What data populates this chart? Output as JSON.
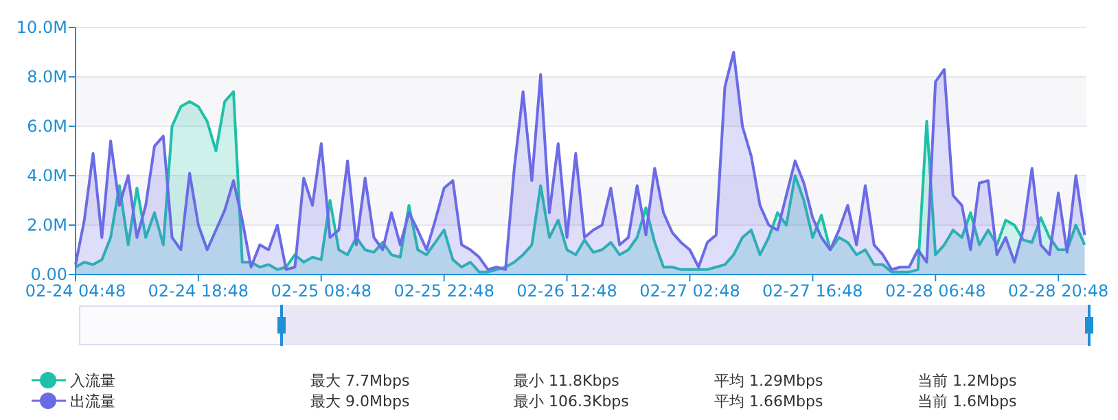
{
  "chart_data": {
    "type": "area",
    "x": [
      "--02-24T04:48",
      "--02-24T05:48",
      "--02-24T06:48",
      "--02-24T07:48",
      "--02-24T08:48",
      "--02-24T09:48",
      "--02-24T10:48",
      "--02-24T11:48",
      "--02-24T12:48",
      "--02-24T13:48",
      "--02-24T14:48",
      "--02-24T15:48",
      "--02-24T16:48",
      "--02-24T17:48",
      "--02-24T18:48",
      "--02-24T19:48",
      "--02-24T20:48",
      "--02-24T21:48",
      "--02-24T22:48",
      "--02-24T23:48",
      "--02-25T00:48",
      "--02-25T01:48",
      "--02-25T02:48",
      "--02-25T03:48",
      "--02-25T04:48",
      "--02-25T05:48",
      "--02-25T06:48",
      "--02-25T07:48",
      "--02-25T08:48",
      "--02-25T09:48",
      "--02-25T10:48",
      "--02-25T11:48",
      "--02-25T12:48",
      "--02-25T13:48",
      "--02-25T14:48",
      "--02-25T15:48",
      "--02-25T16:48",
      "--02-25T17:48",
      "--02-25T18:48",
      "--02-25T19:48",
      "--02-25T20:48",
      "--02-25T21:48",
      "--02-25T22:48",
      "--02-25T23:48",
      "--02-26T00:48",
      "--02-26T01:48",
      "--02-26T02:48",
      "--02-26T03:48",
      "--02-26T04:48",
      "--02-26T05:48",
      "--02-26T06:48",
      "--02-26T07:48",
      "--02-26T08:48",
      "--02-26T09:48",
      "--02-26T10:48",
      "--02-26T11:48",
      "--02-26T12:48",
      "--02-26T13:48",
      "--02-26T14:48",
      "--02-26T15:48",
      "--02-26T16:48",
      "--02-26T17:48",
      "--02-26T18:48",
      "--02-26T19:48",
      "--02-26T20:48",
      "--02-26T21:48",
      "--02-26T22:48",
      "--02-26T23:48",
      "--02-27T00:48",
      "--02-27T01:48",
      "--02-27T02:48",
      "--02-27T03:48",
      "--02-27T04:48",
      "--02-27T05:48",
      "--02-27T06:48",
      "--02-27T07:48",
      "--02-27T08:48",
      "--02-27T09:48",
      "--02-27T10:48",
      "--02-27T11:48",
      "--02-27T12:48",
      "--02-27T13:48",
      "--02-27T14:48",
      "--02-27T15:48",
      "--02-27T16:48",
      "--02-27T17:48",
      "--02-27T18:48",
      "--02-27T19:48",
      "--02-27T20:48",
      "--02-27T21:48",
      "--02-27T22:48",
      "--02-27T23:48",
      "--02-28T00:48",
      "--02-28T01:48",
      "--02-28T02:48",
      "--02-28T03:48",
      "--02-28T04:48",
      "--02-28T05:48",
      "--02-28T06:48",
      "--02-28T07:48",
      "--02-28T08:48",
      "--02-28T09:48",
      "--02-28T10:48",
      "--02-28T11:48",
      "--02-28T12:48",
      "--02-28T13:48",
      "--02-28T14:48",
      "--02-28T15:48",
      "--02-28T16:48",
      "--02-28T17:48",
      "--02-28T18:48",
      "--02-28T19:48",
      "--02-28T20:48",
      "--02-28T21:48",
      "--02-28T22:48",
      "--02-28T23:48"
    ],
    "series": [
      {
        "name": "入流量",
        "color": "#1fc0a8",
        "values": [
          0.3,
          0.5,
          0.4,
          0.6,
          1.5,
          3.6,
          1.2,
          3.5,
          1.5,
          2.5,
          1.2,
          6.0,
          6.8,
          7.0,
          6.8,
          6.2,
          5.0,
          7.0,
          7.4,
          0.5,
          0.5,
          0.3,
          0.4,
          0.2,
          0.3,
          0.8,
          0.5,
          0.7,
          0.6,
          3.0,
          1.0,
          0.8,
          1.5,
          1.0,
          0.9,
          1.3,
          0.8,
          0.7,
          2.8,
          1.0,
          0.8,
          1.3,
          1.8,
          0.6,
          0.3,
          0.5,
          0.1,
          0.1,
          0.2,
          0.3,
          0.5,
          0.8,
          1.2,
          3.6,
          1.5,
          2.2,
          1.0,
          0.8,
          1.4,
          0.9,
          1.0,
          1.3,
          0.8,
          1.0,
          1.5,
          2.7,
          1.3,
          0.3,
          0.3,
          0.2,
          0.2,
          0.2,
          0.2,
          0.3,
          0.4,
          0.8,
          1.5,
          1.8,
          0.8,
          1.5,
          2.5,
          2.0,
          4.0,
          3.0,
          1.5,
          2.4,
          1.0,
          1.5,
          1.3,
          0.8,
          1.0,
          0.4,
          0.4,
          0.1,
          0.1,
          0.1,
          0.2,
          6.2,
          0.8,
          1.2,
          1.8,
          1.5,
          2.5,
          1.2,
          1.8,
          1.2,
          2.2,
          2.0,
          1.4,
          1.3,
          2.3,
          1.5,
          1.0,
          1.0,
          2.0,
          1.2
        ]
      },
      {
        "name": "出流量",
        "color": "#6b6be6",
        "values": [
          0.4,
          2.2,
          4.9,
          1.5,
          5.4,
          2.8,
          4.0,
          1.5,
          2.8,
          5.2,
          5.6,
          1.5,
          1.0,
          4.1,
          2.0,
          1.0,
          1.8,
          2.6,
          3.8,
          2.2,
          0.3,
          1.2,
          1.0,
          2.0,
          0.2,
          0.3,
          3.9,
          2.8,
          5.3,
          1.5,
          1.8,
          4.6,
          1.2,
          3.9,
          1.5,
          1.0,
          2.5,
          1.2,
          2.5,
          1.8,
          1.0,
          2.2,
          3.5,
          3.8,
          1.2,
          1.0,
          0.7,
          0.2,
          0.3,
          0.2,
          4.3,
          7.4,
          3.8,
          8.1,
          2.5,
          5.3,
          1.5,
          4.9,
          1.5,
          1.8,
          2.0,
          3.5,
          1.2,
          1.5,
          3.6,
          1.6,
          4.3,
          2.5,
          1.7,
          1.3,
          1.0,
          0.3,
          1.3,
          1.6,
          7.6,
          9.0,
          6.0,
          4.8,
          2.8,
          2.0,
          1.8,
          3.2,
          4.6,
          3.7,
          2.3,
          1.5,
          1.0,
          1.8,
          2.8,
          1.2,
          3.6,
          1.2,
          0.8,
          0.2,
          0.3,
          0.3,
          1.0,
          0.5,
          7.8,
          8.3,
          3.2,
          2.8,
          1.0,
          3.7,
          3.8,
          0.8,
          1.5,
          0.5,
          1.8,
          4.3,
          1.2,
          0.8,
          3.3,
          0.9,
          4.0,
          1.6
        ]
      }
    ],
    "xlim": [
      "--02-24T04:48",
      "--02-29T00:00"
    ],
    "xticks": [
      {
        "value": "--02-24T04:48",
        "label": "02-24 04:48"
      },
      {
        "value": "--02-24T18:48",
        "label": "02-24 18:48"
      },
      {
        "value": "--02-25T08:48",
        "label": "02-25 08:48"
      },
      {
        "value": "--02-25T22:48",
        "label": "02-25 22:48"
      },
      {
        "value": "--02-26T12:48",
        "label": "02-26 12:48"
      },
      {
        "value": "--02-27T02:48",
        "label": "02-27 02:48"
      },
      {
        "value": "--02-27T16:48",
        "label": "02-27 16:48"
      },
      {
        "value": "--02-28T06:48",
        "label": "02-28 06:48"
      },
      {
        "value": "--02-28T20:48",
        "label": "02-28 20:48"
      }
    ],
    "ylim": [
      0,
      10
    ],
    "yticks": [
      {
        "value": 0,
        "label": "0.00"
      },
      {
        "value": 2,
        "label": "2.0M"
      },
      {
        "value": 4,
        "label": "4.0M"
      },
      {
        "value": 6,
        "label": "6.0M"
      },
      {
        "value": 8,
        "label": "8.0M"
      },
      {
        "value": 10,
        "label": "10.0M"
      }
    ],
    "grid": "y",
    "legend": "bottom left",
    "marker": "none",
    "line_style": "solid",
    "annotations": [
      "最大 7.7Mbps",
      "最小 11.8Kbps",
      "平均 1.29Mbps",
      "当前 1.2Mbps",
      "最大 9.0Mbps",
      "最小 106.3Kbps",
      "平均 1.66Mbps",
      "当前 1.6Mbps"
    ]
  }
}
